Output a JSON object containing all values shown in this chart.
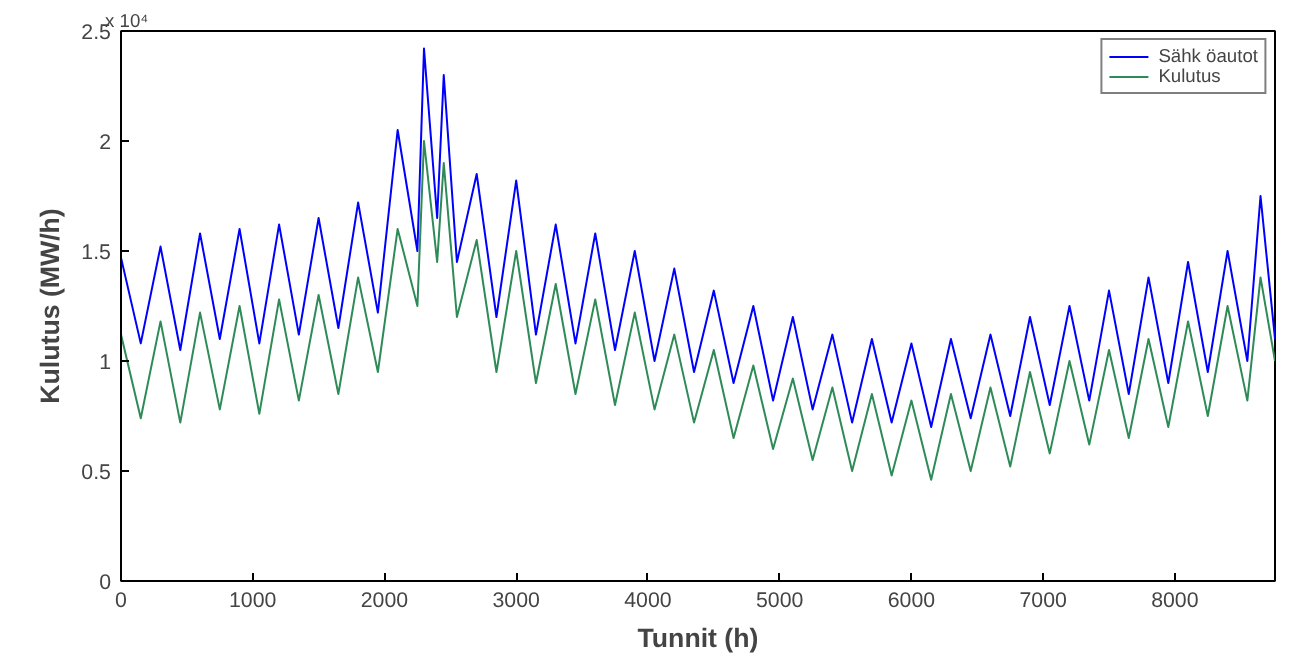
{
  "chart_data": {
    "type": "line",
    "xlabel": "Tunnit (h)",
    "ylabel": "Kulutus (MW/h)",
    "annotations": [
      "x 10⁴"
    ],
    "x": [
      0,
      150,
      300,
      450,
      600,
      750,
      900,
      1050,
      1200,
      1350,
      1500,
      1650,
      1800,
      1950,
      2100,
      2250,
      2300,
      2400,
      2450,
      2550,
      2700,
      2850,
      3000,
      3150,
      3300,
      3450,
      3600,
      3750,
      3900,
      4050,
      4200,
      4350,
      4500,
      4650,
      4800,
      4950,
      5100,
      5250,
      5400,
      5550,
      5700,
      5850,
      6000,
      6150,
      6300,
      6450,
      6600,
      6750,
      6900,
      7050,
      7200,
      7350,
      7500,
      7650,
      7800,
      7950,
      8100,
      8250,
      8400,
      8550,
      8650,
      8760
    ],
    "series": [
      {
        "name": "Sähk öautot",
        "color": "#0000ff",
        "values": [
          1.47,
          1.08,
          1.52,
          1.05,
          1.58,
          1.1,
          1.6,
          1.08,
          1.62,
          1.12,
          1.65,
          1.15,
          1.72,
          1.22,
          2.05,
          1.5,
          2.42,
          1.65,
          2.3,
          1.45,
          1.85,
          1.2,
          1.82,
          1.12,
          1.62,
          1.08,
          1.58,
          1.05,
          1.5,
          1.0,
          1.42,
          0.95,
          1.32,
          0.9,
          1.25,
          0.82,
          1.2,
          0.78,
          1.12,
          0.72,
          1.1,
          0.72,
          1.08,
          0.7,
          1.1,
          0.74,
          1.12,
          0.75,
          1.2,
          0.8,
          1.25,
          0.82,
          1.32,
          0.85,
          1.38,
          0.9,
          1.45,
          0.95,
          1.5,
          1.0,
          1.75,
          1.1
        ]
      },
      {
        "name": "Kulutus",
        "color": "#2e8b57",
        "values": [
          1.12,
          0.74,
          1.18,
          0.72,
          1.22,
          0.78,
          1.25,
          0.76,
          1.28,
          0.82,
          1.3,
          0.85,
          1.38,
          0.95,
          1.6,
          1.25,
          2.0,
          1.45,
          1.9,
          1.2,
          1.55,
          0.95,
          1.5,
          0.9,
          1.35,
          0.85,
          1.28,
          0.8,
          1.22,
          0.78,
          1.12,
          0.72,
          1.05,
          0.65,
          0.98,
          0.6,
          0.92,
          0.55,
          0.88,
          0.5,
          0.85,
          0.48,
          0.82,
          0.46,
          0.85,
          0.5,
          0.88,
          0.52,
          0.95,
          0.58,
          1.0,
          0.62,
          1.05,
          0.65,
          1.1,
          0.7,
          1.18,
          0.75,
          1.25,
          0.82,
          1.38,
          1.0
        ]
      }
    ],
    "xlim": [
      0,
      8760
    ],
    "ylim": [
      0,
      2.5
    ],
    "xticks": [
      0,
      1000,
      2000,
      3000,
      4000,
      5000,
      6000,
      7000,
      8000
    ],
    "yticks": [
      0,
      0.5,
      1,
      1.5,
      2,
      2.5
    ],
    "legend": "top right"
  }
}
